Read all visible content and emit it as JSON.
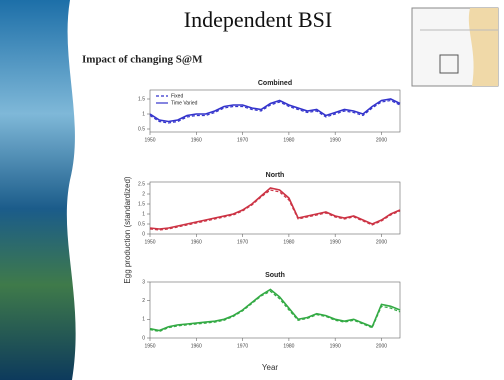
{
  "title": "Independent BSI",
  "subtitle": "Impact of changing S@M",
  "ylabel": "Egg production (standardized)",
  "xlabel": "Year",
  "chart_data": [
    {
      "type": "line",
      "title": "Combined",
      "legend": "top-left",
      "xlim": [
        1950,
        2004
      ],
      "xticks": [
        1950,
        1960,
        1970,
        1980,
        1990,
        2000
      ],
      "ylim": [
        0.4,
        1.8
      ],
      "yticks": [
        0.5,
        1.0,
        1.5
      ],
      "x": [
        1950,
        1952,
        1954,
        1956,
        1958,
        1960,
        1962,
        1964,
        1966,
        1968,
        1970,
        1972,
        1974,
        1976,
        1978,
        1980,
        1982,
        1984,
        1986,
        1988,
        1990,
        1992,
        1994,
        1996,
        1998,
        2000,
        2002,
        2004
      ],
      "series": [
        {
          "name": "Fixed",
          "color": "#3333cc",
          "dashed": true,
          "values": [
            0.95,
            0.75,
            0.7,
            0.75,
            0.9,
            0.95,
            0.95,
            1.05,
            1.2,
            1.25,
            1.25,
            1.15,
            1.1,
            1.3,
            1.4,
            1.25,
            1.15,
            1.05,
            1.1,
            0.9,
            1.0,
            1.1,
            1.05,
            0.95,
            1.2,
            1.4,
            1.45,
            1.3
          ]
        },
        {
          "name": "Time Varied",
          "color": "#3333cc",
          "dashed": false,
          "values": [
            1.0,
            0.8,
            0.75,
            0.8,
            0.95,
            1.0,
            1.0,
            1.1,
            1.25,
            1.3,
            1.3,
            1.2,
            1.15,
            1.35,
            1.45,
            1.3,
            1.2,
            1.1,
            1.15,
            0.95,
            1.05,
            1.15,
            1.1,
            1.0,
            1.25,
            1.45,
            1.5,
            1.35
          ]
        }
      ]
    },
    {
      "type": "line",
      "title": "North",
      "xlim": [
        1950,
        2004
      ],
      "xticks": [
        1950,
        1960,
        1970,
        1980,
        1990,
        2000
      ],
      "ylim": [
        0,
        2.6
      ],
      "yticks": [
        0,
        0.5,
        1.0,
        1.5,
        2.0,
        2.5
      ],
      "x": [
        1950,
        1952,
        1954,
        1956,
        1958,
        1960,
        1962,
        1964,
        1966,
        1968,
        1970,
        1972,
        1974,
        1976,
        1978,
        1980,
        1982,
        1984,
        1986,
        1988,
        1990,
        1992,
        1994,
        1996,
        1998,
        2000,
        2002,
        2004
      ],
      "series": [
        {
          "color": "#cc3344",
          "dashed": true,
          "values": [
            0.25,
            0.2,
            0.25,
            0.35,
            0.45,
            0.55,
            0.65,
            0.75,
            0.85,
            0.95,
            1.15,
            1.45,
            1.85,
            2.2,
            2.1,
            1.7,
            0.75,
            0.85,
            0.95,
            1.05,
            0.85,
            0.75,
            0.85,
            0.65,
            0.45,
            0.65,
            0.95,
            1.15
          ]
        },
        {
          "color": "#cc3344",
          "dashed": false,
          "values": [
            0.3,
            0.25,
            0.3,
            0.4,
            0.5,
            0.6,
            0.7,
            0.8,
            0.9,
            1.0,
            1.2,
            1.5,
            1.9,
            2.3,
            2.2,
            1.8,
            0.8,
            0.9,
            1.0,
            1.1,
            0.9,
            0.8,
            0.9,
            0.7,
            0.5,
            0.7,
            1.0,
            1.2
          ]
        }
      ]
    },
    {
      "type": "line",
      "title": "South",
      "xlim": [
        1950,
        2004
      ],
      "xticks": [
        1950,
        1960,
        1970,
        1980,
        1990,
        2000
      ],
      "ylim": [
        0,
        3
      ],
      "yticks": [
        0,
        1.0,
        2.0,
        3.0
      ],
      "x": [
        1950,
        1952,
        1954,
        1956,
        1958,
        1960,
        1962,
        1964,
        1966,
        1968,
        1970,
        1972,
        1974,
        1976,
        1978,
        1980,
        1982,
        1984,
        1986,
        1988,
        1990,
        1992,
        1994,
        1996,
        1998,
        2000,
        2002,
        2004
      ],
      "series": [
        {
          "color": "#33aa44",
          "dashed": true,
          "values": [
            0.45,
            0.35,
            0.55,
            0.65,
            0.7,
            0.75,
            0.8,
            0.85,
            0.95,
            1.15,
            1.45,
            1.85,
            2.25,
            2.5,
            2.1,
            1.5,
            0.95,
            1.05,
            1.25,
            1.15,
            0.95,
            0.85,
            0.95,
            0.75,
            0.55,
            1.7,
            1.6,
            1.4
          ]
        },
        {
          "color": "#33aa44",
          "dashed": false,
          "values": [
            0.5,
            0.4,
            0.6,
            0.7,
            0.75,
            0.8,
            0.85,
            0.9,
            1.0,
            1.2,
            1.5,
            1.9,
            2.3,
            2.6,
            2.2,
            1.6,
            1.0,
            1.1,
            1.3,
            1.2,
            1.0,
            0.9,
            1.0,
            0.8,
            0.6,
            1.8,
            1.7,
            1.5
          ]
        }
      ]
    }
  ]
}
